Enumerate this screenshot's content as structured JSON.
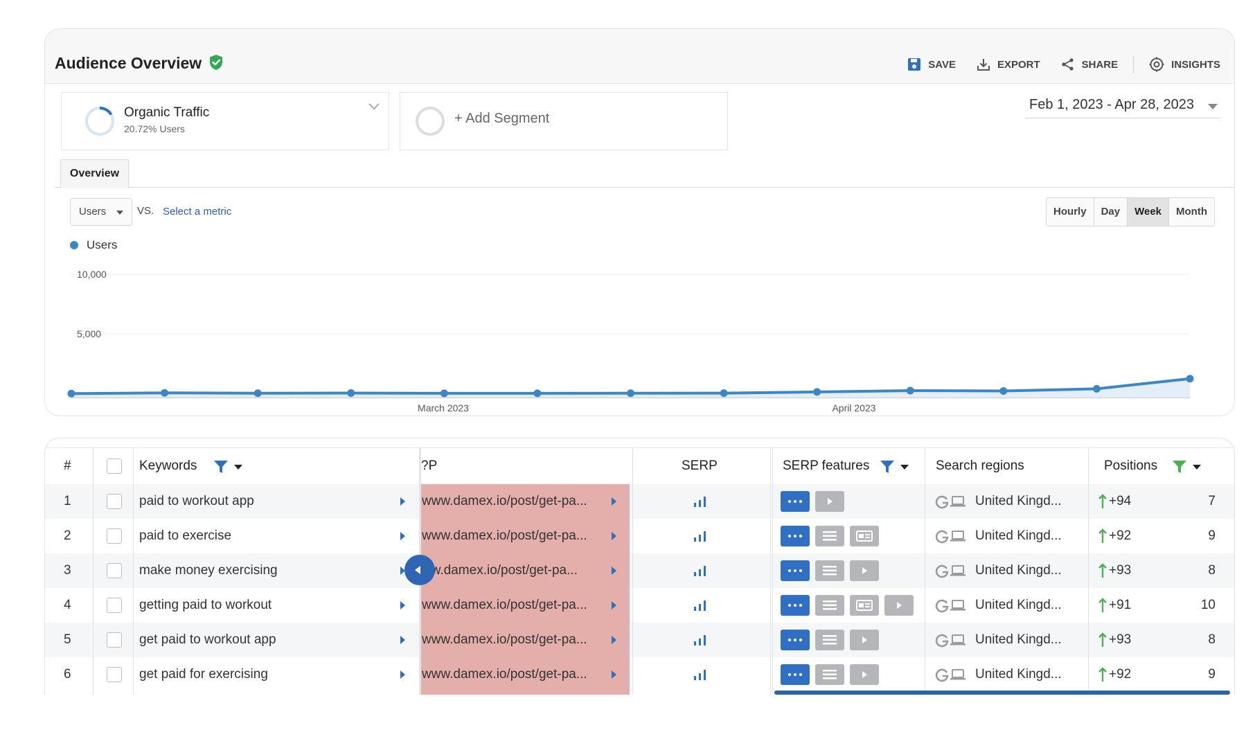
{
  "overview": {
    "title": "Audience Overview",
    "actions": {
      "save": "SAVE",
      "export": "EXPORT",
      "share": "SHARE",
      "insights": "INSIGHTS"
    },
    "segment": {
      "name": "Organic Traffic",
      "sub": "20.72% Users",
      "add": "+ Add Segment"
    },
    "date_range": "Feb 1, 2023 - Apr 28, 2023",
    "tab": "Overview",
    "metric": "Users",
    "vs": "VS.",
    "select_metric": "Select a metric",
    "granularity": [
      "Hourly",
      "Day",
      "Week",
      "Month"
    ],
    "granularity_active": "Week",
    "legend": "Users"
  },
  "chart_data": {
    "type": "area",
    "series": [
      {
        "name": "Users",
        "color": "#3d86c6",
        "values": [
          0,
          60,
          30,
          45,
          20,
          25,
          30,
          40,
          140,
          250,
          220,
          400,
          1250
        ]
      }
    ],
    "y_ticks": [
      "10,000",
      "5,000"
    ],
    "x_ticks": [
      "March 2023",
      "April 2023"
    ],
    "ylim": [
      -100,
      10000
    ],
    "grid": true
  },
  "table": {
    "headers": {
      "num": "#",
      "keywords": "Keywords",
      "url": "?P",
      "serp": "SERP",
      "features": "SERP features",
      "regions": "Search regions",
      "positions": "Positions"
    },
    "rows": [
      {
        "n": "1",
        "keyword": "paid to workout app",
        "url": "www.damex.io/post/get-pa...",
        "features": [
          "dots",
          "play"
        ],
        "region": "United Kingd...",
        "change": "+94",
        "pos": "7"
      },
      {
        "n": "2",
        "keyword": "paid to exercise",
        "url": "www.damex.io/post/get-pa...",
        "features": [
          "dots",
          "list",
          "card"
        ],
        "region": "United Kingd...",
        "change": "+92",
        "pos": "9"
      },
      {
        "n": "3",
        "keyword": "make money exercising",
        "url": "ww.damex.io/post/get-pa...",
        "features": [
          "dots",
          "list",
          "play"
        ],
        "region": "United Kingd...",
        "change": "+93",
        "pos": "8"
      },
      {
        "n": "4",
        "keyword": "getting paid to workout",
        "url": "www.damex.io/post/get-pa...",
        "features": [
          "dots",
          "list",
          "card",
          "play"
        ],
        "region": "United Kingd...",
        "change": "+91",
        "pos": "10"
      },
      {
        "n": "5",
        "keyword": "get paid to workout app",
        "url": "www.damex.io/post/get-pa...",
        "features": [
          "dots",
          "list",
          "play"
        ],
        "region": "United Kingd...",
        "change": "+93",
        "pos": "8"
      },
      {
        "n": "6",
        "keyword": "get paid for exercising",
        "url": "www.damex.io/post/get-pa...",
        "features": [
          "dots",
          "list",
          "play"
        ],
        "region": "United Kingd...",
        "change": "+92",
        "pos": "9"
      }
    ]
  },
  "colors": {
    "accent": "#2f6fc4",
    "line": "#3d86c6",
    "up_arrow": "#4caf50",
    "url_highlight": "#e4aeab"
  }
}
